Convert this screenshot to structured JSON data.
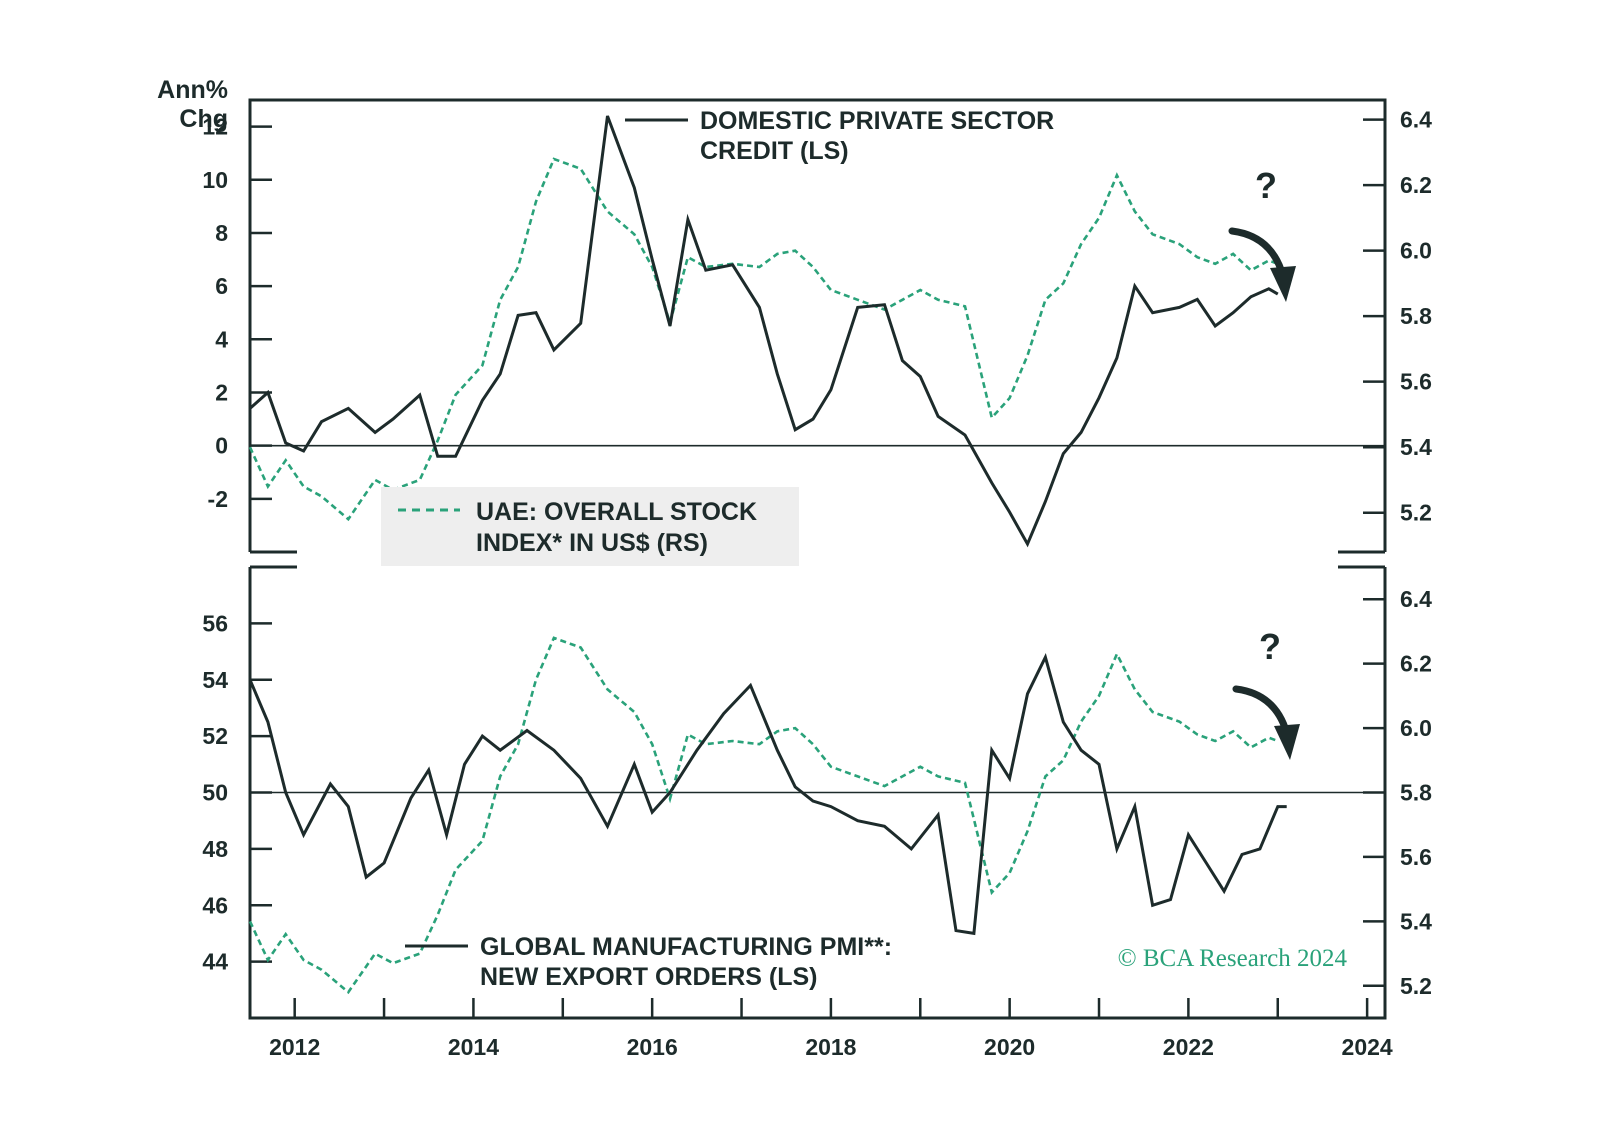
{
  "copyright": "© BCA Research 2024",
  "colors": {
    "dark": "#1d2b2b",
    "green": "#2aa27a",
    "legend_bg": "#eeeeee"
  },
  "chart_data": [
    {
      "type": "line",
      "panel": "top",
      "left_axis": {
        "unit_line1": "Ann%",
        "unit_line2": "Chg",
        "ylim": [
          -4,
          13
        ],
        "ticks": [
          "12",
          "10",
          "8",
          "6",
          "4",
          "2",
          "0",
          "-2"
        ]
      },
      "right_axis": {
        "ylim": [
          5.08,
          6.46
        ],
        "ticks": [
          "6.4",
          "6.2",
          "6.0",
          "5.8",
          "5.6",
          "5.4",
          "5.2"
        ]
      },
      "reference_line": 0,
      "annotation": "?",
      "series": [
        {
          "name_line1": "DOMESTIC PRIVATE SECTOR",
          "name_line2": "CREDIT (LS)",
          "axis": "left",
          "style": "solid",
          "x": [
            2011.5,
            2011.7,
            2011.9,
            2012.1,
            2012.3,
            2012.6,
            2012.9,
            2013.1,
            2013.4,
            2013.6,
            2013.8,
            2014.1,
            2014.3,
            2014.5,
            2014.7,
            2014.9,
            2015.2,
            2015.5,
            2015.8,
            2016.0,
            2016.2,
            2016.4,
            2016.6,
            2016.9,
            2017.2,
            2017.4,
            2017.6,
            2017.8,
            2018.0,
            2018.3,
            2018.6,
            2018.8,
            2019.0,
            2019.2,
            2019.5,
            2019.8,
            2020.0,
            2020.2,
            2020.4,
            2020.6,
            2020.8,
            2021.0,
            2021.2,
            2021.4,
            2021.6,
            2021.9,
            2022.1,
            2022.3,
            2022.5,
            2022.7,
            2022.9,
            2023.0
          ],
          "values": [
            1.4,
            2.0,
            0.1,
            -0.2,
            0.9,
            1.4,
            0.5,
            1.0,
            1.9,
            -0.4,
            -0.4,
            1.7,
            2.7,
            4.9,
            5.0,
            3.6,
            4.6,
            12.4,
            9.7,
            7.0,
            4.5,
            8.5,
            6.6,
            6.8,
            5.2,
            2.7,
            0.6,
            1.0,
            2.1,
            5.2,
            5.3,
            3.2,
            2.6,
            1.1,
            0.4,
            -1.4,
            -2.5,
            -3.7,
            -2.1,
            -0.3,
            0.5,
            1.8,
            3.3,
            6.0,
            5.0,
            5.2,
            5.5,
            4.5,
            5.0,
            5.6,
            5.9,
            5.7
          ]
        },
        {
          "name_line1": "UAE: OVERALL STOCK",
          "name_line2": "INDEX* IN US$ (RS)",
          "axis": "right",
          "style": "dashed",
          "x": [
            2011.5,
            2011.7,
            2011.9,
            2012.1,
            2012.3,
            2012.6,
            2012.9,
            2013.1,
            2013.4,
            2013.6,
            2013.8,
            2014.1,
            2014.3,
            2014.5,
            2014.7,
            2014.9,
            2015.2,
            2015.5,
            2015.8,
            2016.0,
            2016.2,
            2016.4,
            2016.6,
            2016.9,
            2017.2,
            2017.4,
            2017.6,
            2017.8,
            2018.0,
            2018.3,
            2018.6,
            2018.8,
            2019.0,
            2019.2,
            2019.5,
            2019.8,
            2020.0,
            2020.2,
            2020.4,
            2020.6,
            2020.8,
            2021.0,
            2021.2,
            2021.4,
            2021.6,
            2021.9,
            2022.1,
            2022.3,
            2022.5,
            2022.7,
            2022.9,
            2023.0
          ],
          "values": [
            5.4,
            5.28,
            5.36,
            5.28,
            5.25,
            5.18,
            5.3,
            5.27,
            5.3,
            5.42,
            5.56,
            5.65,
            5.85,
            5.95,
            6.15,
            6.28,
            6.25,
            6.12,
            6.05,
            5.95,
            5.78,
            5.98,
            5.95,
            5.96,
            5.95,
            5.99,
            6.0,
            5.95,
            5.88,
            5.85,
            5.82,
            5.85,
            5.88,
            5.85,
            5.83,
            5.49,
            5.55,
            5.68,
            5.85,
            5.9,
            6.02,
            6.1,
            6.23,
            6.12,
            6.05,
            6.02,
            5.98,
            5.96,
            5.99,
            5.94,
            5.97,
            5.96
          ]
        }
      ]
    },
    {
      "type": "line",
      "panel": "bottom",
      "left_axis": {
        "ylim": [
          42,
          58
        ],
        "ticks": [
          "56",
          "54",
          "52",
          "50",
          "48",
          "46",
          "44"
        ]
      },
      "right_axis": {
        "ylim": [
          5.1,
          6.5
        ],
        "ticks": [
          "6.4",
          "6.2",
          "6.0",
          "5.8",
          "5.6",
          "5.4",
          "5.2"
        ]
      },
      "x_axis": {
        "ticks": [
          "2012",
          "2014",
          "2016",
          "2018",
          "2020",
          "2022",
          "2024"
        ],
        "xlim": [
          2011.5,
          2024.2
        ]
      },
      "reference_line": 50,
      "annotation": "?",
      "series": [
        {
          "name_line1": "GLOBAL MANUFACTURING PMI**:",
          "name_line2": "NEW EXPORT ORDERS (LS)",
          "axis": "left",
          "style": "solid",
          "x": [
            2011.5,
            2011.7,
            2011.9,
            2012.1,
            2012.4,
            2012.6,
            2012.8,
            2013.0,
            2013.3,
            2013.5,
            2013.7,
            2013.9,
            2014.1,
            2014.3,
            2014.6,
            2014.9,
            2015.2,
            2015.5,
            2015.8,
            2016.0,
            2016.2,
            2016.5,
            2016.8,
            2017.1,
            2017.4,
            2017.6,
            2017.8,
            2018.0,
            2018.3,
            2018.6,
            2018.9,
            2019.2,
            2019.4,
            2019.6,
            2019.8,
            2020.0,
            2020.2,
            2020.4,
            2020.6,
            2020.8,
            2021.0,
            2021.2,
            2021.4,
            2021.6,
            2021.8,
            2022.0,
            2022.2,
            2022.4,
            2022.6,
            2022.8,
            2023.0,
            2023.1
          ],
          "values": [
            54.0,
            52.5,
            50.0,
            48.5,
            50.3,
            49.5,
            47.0,
            47.5,
            49.8,
            50.8,
            48.5,
            51.0,
            52.0,
            51.5,
            52.2,
            51.5,
            50.5,
            48.8,
            51.0,
            49.3,
            50.0,
            51.5,
            52.8,
            53.8,
            51.5,
            50.2,
            49.7,
            49.5,
            49.0,
            48.8,
            48.0,
            49.2,
            45.1,
            45.0,
            51.5,
            50.5,
            53.5,
            54.8,
            52.5,
            51.5,
            51.0,
            48.0,
            49.5,
            46.0,
            46.2,
            48.5,
            47.5,
            46.5,
            47.8,
            48.0,
            49.5,
            49.5
          ]
        },
        {
          "name": "UAE: OVERALL STOCK INDEX* IN US$ (RS)",
          "axis": "right",
          "style": "dashed",
          "x": [
            2011.5,
            2011.7,
            2011.9,
            2012.1,
            2012.3,
            2012.6,
            2012.9,
            2013.1,
            2013.4,
            2013.6,
            2013.8,
            2014.1,
            2014.3,
            2014.5,
            2014.7,
            2014.9,
            2015.2,
            2015.5,
            2015.8,
            2016.0,
            2016.2,
            2016.4,
            2016.6,
            2016.9,
            2017.2,
            2017.4,
            2017.6,
            2017.8,
            2018.0,
            2018.3,
            2018.6,
            2018.8,
            2019.0,
            2019.2,
            2019.5,
            2019.8,
            2020.0,
            2020.2,
            2020.4,
            2020.6,
            2020.8,
            2021.0,
            2021.2,
            2021.4,
            2021.6,
            2021.9,
            2022.1,
            2022.3,
            2022.5,
            2022.7,
            2022.9,
            2023.0
          ],
          "values": [
            5.4,
            5.28,
            5.36,
            5.28,
            5.25,
            5.18,
            5.3,
            5.27,
            5.3,
            5.42,
            5.56,
            5.65,
            5.85,
            5.95,
            6.15,
            6.28,
            6.25,
            6.12,
            6.05,
            5.95,
            5.78,
            5.98,
            5.95,
            5.96,
            5.95,
            5.99,
            6.0,
            5.95,
            5.88,
            5.85,
            5.82,
            5.85,
            5.88,
            5.85,
            5.83,
            5.49,
            5.55,
            5.68,
            5.85,
            5.9,
            6.02,
            6.1,
            6.23,
            6.12,
            6.05,
            6.02,
            5.98,
            5.96,
            5.99,
            5.94,
            5.97,
            5.96
          ]
        }
      ]
    }
  ]
}
